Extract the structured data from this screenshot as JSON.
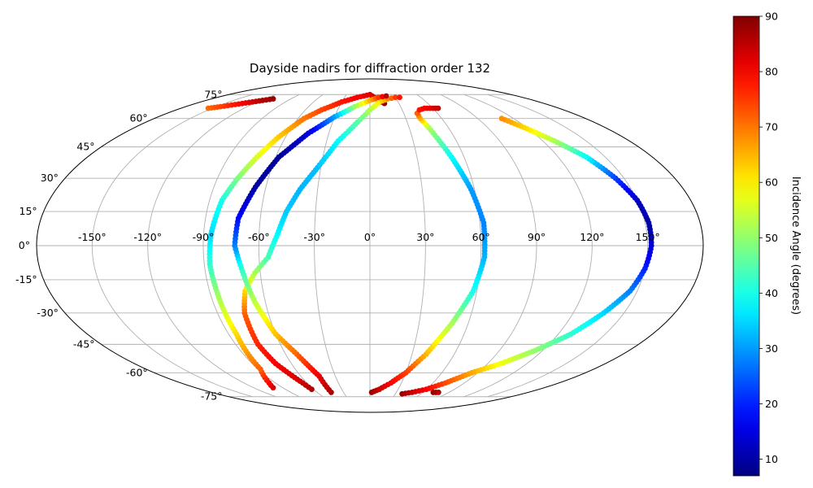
{
  "chart_data": {
    "type": "scatter",
    "projection": "mollweide",
    "title": "Dayside nadirs for diffraction order 132",
    "xlabel": "",
    "ylabel": "",
    "xlim": [
      -180,
      180
    ],
    "ylim": [
      -90,
      90
    ],
    "grid": true,
    "lon_ticks": [
      {
        "value": -150,
        "label": "-150°"
      },
      {
        "value": -120,
        "label": "-120°"
      },
      {
        "value": -90,
        "label": "-90°"
      },
      {
        "value": -60,
        "label": "-60°"
      },
      {
        "value": -30,
        "label": "-30°"
      },
      {
        "value": 0,
        "label": "0°"
      },
      {
        "value": 30,
        "label": "30°"
      },
      {
        "value": 60,
        "label": "60°"
      },
      {
        "value": 90,
        "label": "90°"
      },
      {
        "value": 120,
        "label": "120°"
      },
      {
        "value": 150,
        "label": "150°"
      }
    ],
    "lat_ticks": [
      {
        "value": 75,
        "label": "75°"
      },
      {
        "value": 60,
        "label": "60°"
      },
      {
        "value": 45,
        "label": "45°"
      },
      {
        "value": 30,
        "label": "30°"
      },
      {
        "value": 15,
        "label": "15°"
      },
      {
        "value": 0,
        "label": "0°"
      },
      {
        "value": -15,
        "label": "-15°"
      },
      {
        "value": -30,
        "label": "-30°"
      },
      {
        "value": -45,
        "label": "-45°"
      },
      {
        "value": -60,
        "label": "-60°"
      },
      {
        "value": -75,
        "label": "-75°"
      }
    ],
    "colormap": "jet",
    "colorbar": {
      "label": "Incidence Angle (degrees)",
      "range": [
        7,
        90
      ],
      "ticks": [
        {
          "value": 10,
          "label": "10"
        },
        {
          "value": 20,
          "label": "20"
        },
        {
          "value": 30,
          "label": "30"
        },
        {
          "value": 40,
          "label": "40"
        },
        {
          "value": 50,
          "label": "50"
        },
        {
          "value": 60,
          "label": "60"
        },
        {
          "value": 70,
          "label": "70"
        },
        {
          "value": 80,
          "label": "80"
        },
        {
          "value": 90,
          "label": "90"
        }
      ]
    },
    "tracks": [
      {
        "points": [
          [
            -154,
            66,
            71
          ],
          [
            -146,
            67,
            74
          ],
          [
            -139,
            68,
            77
          ],
          [
            -132,
            69,
            80
          ],
          [
            -125,
            70,
            83
          ],
          [
            -118,
            71,
            86
          ],
          [
            -110,
            72,
            88
          ]
        ]
      },
      {
        "points": [
          [
            -100,
            -69,
            83
          ],
          [
            -96,
            -66,
            80
          ],
          [
            -88,
            -58,
            72
          ],
          [
            -85,
            -40,
            62
          ],
          [
            -86,
            -20,
            50
          ],
          [
            -87,
            -8,
            42
          ],
          [
            -86,
            5,
            35
          ],
          [
            -83,
            20,
            40
          ],
          [
            -78,
            30,
            48
          ],
          [
            -72,
            40,
            56
          ],
          [
            -65,
            50,
            63
          ],
          [
            -55,
            60,
            70
          ],
          [
            -45,
            65,
            74
          ],
          [
            -30,
            70,
            78
          ],
          [
            -15,
            73,
            80
          ],
          [
            0,
            75,
            82
          ],
          [
            8,
            72,
            84
          ],
          [
            12,
            70,
            86
          ],
          [
            15,
            69,
            88
          ]
        ]
      },
      {
        "points": [
          [
            -62,
            -70,
            86
          ],
          [
            -64,
            -66,
            84
          ],
          [
            -72,
            -55,
            80
          ],
          [
            -75,
            -45,
            77
          ],
          [
            -74,
            -30,
            72
          ],
          [
            -70,
            -20,
            62
          ],
          [
            -63,
            -12,
            52
          ],
          [
            -55,
            -5,
            44
          ],
          [
            -50,
            5,
            38
          ],
          [
            -46,
            15,
            34
          ],
          [
            -40,
            25,
            32
          ],
          [
            -32,
            35,
            33
          ],
          [
            -22,
            48,
            38
          ],
          [
            -10,
            58,
            45
          ],
          [
            0,
            65,
            52
          ],
          [
            10,
            70,
            60
          ],
          [
            20,
            72,
            68
          ],
          [
            30,
            73,
            75
          ],
          [
            35,
            73,
            78
          ]
        ]
      },
      {
        "points": [
          [
            -44,
            -72,
            86
          ],
          [
            -44,
            -62,
            82
          ],
          [
            -52,
            -50,
            72
          ],
          [
            -60,
            -40,
            64
          ],
          [
            -66,
            -25,
            54
          ],
          [
            -70,
            -10,
            42
          ],
          [
            -73,
            0,
            28
          ],
          [
            -72,
            12,
            18
          ],
          [
            -66,
            26,
            10
          ],
          [
            -58,
            40,
            9
          ],
          [
            -45,
            52,
            14
          ],
          [
            -30,
            61,
            30
          ],
          [
            -15,
            67,
            50
          ],
          [
            0,
            71,
            65
          ],
          [
            10,
            73,
            75
          ],
          [
            20,
            74,
            85
          ]
        ]
      },
      {
        "points": [
          [
            2,
            -72,
            88
          ],
          [
            10,
            -70,
            84
          ],
          [
            20,
            -66,
            80
          ],
          [
            30,
            -60,
            75
          ],
          [
            40,
            -50,
            65
          ],
          [
            50,
            -35,
            52
          ],
          [
            58,
            -20,
            40
          ],
          [
            62,
            -5,
            32
          ],
          [
            62,
            10,
            28
          ],
          [
            58,
            25,
            30
          ],
          [
            52,
            40,
            38
          ],
          [
            45,
            55,
            52
          ],
          [
            42,
            60,
            65
          ],
          [
            42,
            63,
            72
          ],
          [
            46,
            65,
            78
          ],
          [
            52,
            66,
            80
          ],
          [
            60,
            66,
            82
          ],
          [
            65,
            66,
            84
          ]
        ]
      },
      {
        "points": [
          [
            38,
            -73,
            88
          ],
          [
            48,
            -72,
            84
          ],
          [
            60,
            -70,
            80
          ],
          [
            72,
            -66,
            74
          ],
          [
            85,
            -60,
            66
          ],
          [
            100,
            -55,
            58
          ],
          [
            115,
            -48,
            50
          ],
          [
            128,
            -40,
            42
          ],
          [
            138,
            -30,
            35
          ],
          [
            146,
            -20,
            28
          ],
          [
            150,
            -10,
            20
          ],
          [
            152,
            0,
            14
          ],
          [
            152,
            10,
            10
          ],
          [
            150,
            20,
            12
          ],
          [
            145,
            30,
            22
          ],
          [
            138,
            40,
            38
          ],
          [
            128,
            48,
            52
          ],
          [
            118,
            55,
            62
          ],
          [
            110,
            60,
            68
          ]
        ]
      },
      {
        "points": [
          [
            72,
            -72,
            88
          ],
          [
            78,
            -72,
            86
          ]
        ]
      }
    ]
  }
}
